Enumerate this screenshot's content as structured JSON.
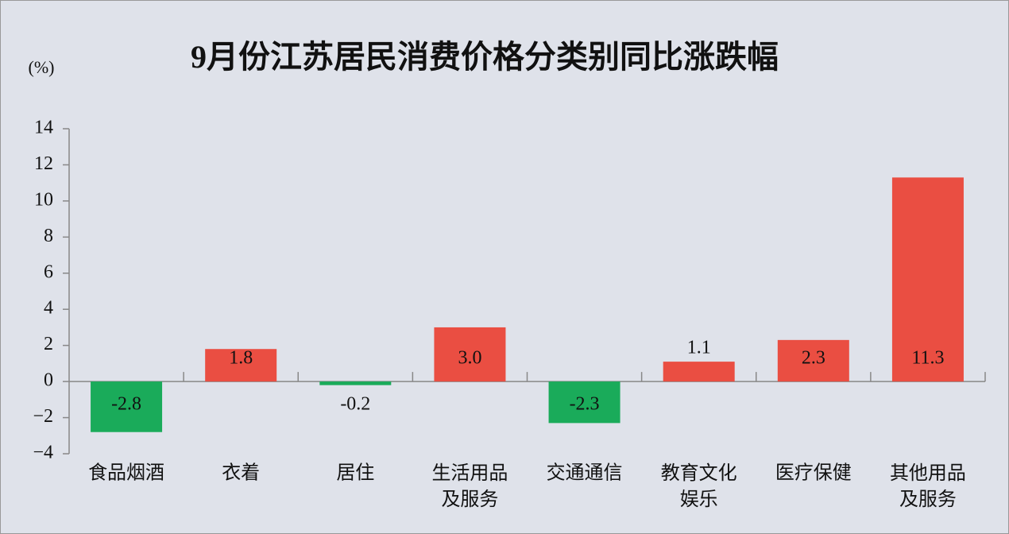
{
  "chart_data": {
    "type": "bar",
    "title": "9月份江苏居民消费价格分类别同比涨跌幅",
    "y_label": "(%)",
    "categories": [
      "食品烟酒",
      "衣着",
      "居住",
      "生活用品及服务",
      "交通通信",
      "教育文化娱乐",
      "医疗保健",
      "其他用品及服务"
    ],
    "values": [
      -2.8,
      1.8,
      -0.2,
      3.0,
      -2.3,
      1.1,
      2.3,
      11.3
    ],
    "value_labels": [
      "-2.8",
      "1.8",
      "-0.2",
      "3.0",
      "-2.3",
      "1.1",
      "2.3",
      "11.3"
    ],
    "colors": [
      "#1aab5a",
      "#ea4e42",
      "#1aab5a",
      "#ea4e42",
      "#1aab5a",
      "#ea4e42",
      "#ea4e42",
      "#ea4e42"
    ],
    "ylim": [
      -4,
      14
    ],
    "yticks": [
      {
        "value": -4,
        "label": "−4"
      },
      {
        "value": -2,
        "label": "−2"
      },
      0,
      2,
      4,
      6,
      8,
      10,
      12,
      14
    ],
    "grid": false
  }
}
